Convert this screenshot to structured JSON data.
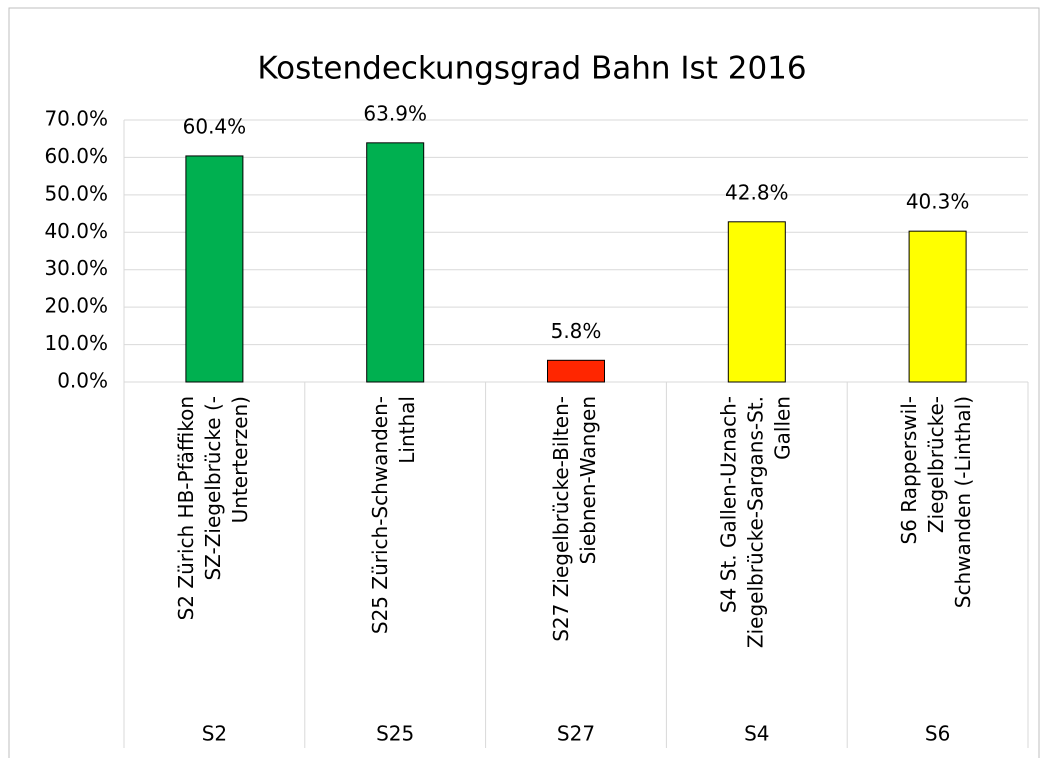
{
  "chart_data": {
    "type": "bar",
    "title": "Kostendeckungsgrad Bahn Ist 2016",
    "categories": [
      [
        "S2 Zürich HB-Pfäffikon",
        "SZ-Ziegelbrücke (-",
        "Unterterzen)"
      ],
      [
        "S25 Zürich-Schwanden-",
        "Linthal"
      ],
      [
        "S27 Ziegelbrücke-Bilten-",
        "Siebnen-Wangen"
      ],
      [
        "S4 St. Gallen-Uznach-",
        "Ziegelbrücke-Sargans-St.",
        "Gallen"
      ],
      [
        "S6 Rapperswil-",
        "Ziegelbrücke-",
        "Schwanden (-Linthal)"
      ]
    ],
    "groups": [
      "S2",
      "S25",
      "S27",
      "S4",
      "S6"
    ],
    "values": [
      60.4,
      63.9,
      5.8,
      42.8,
      40.3
    ],
    "value_labels": [
      "60.4%",
      "63.9%",
      "5.8%",
      "42.8%",
      "40.3%"
    ],
    "colors": [
      "#00b050",
      "#00b050",
      "#ff2600",
      "#ffff00",
      "#ffff00"
    ],
    "ylim": [
      0,
      70
    ],
    "yticks": [
      {
        "value": 0,
        "label": "0.0%"
      },
      {
        "value": 10,
        "label": "10.0%"
      },
      {
        "value": 20,
        "label": "20.0%"
      },
      {
        "value": 30,
        "label": "30.0%"
      },
      {
        "value": 40,
        "label": "40.0%"
      },
      {
        "value": 50,
        "label": "50.0%"
      },
      {
        "value": 60,
        "label": "60.0%"
      },
      {
        "value": 70,
        "label": "70.0%"
      }
    ],
    "grid": true
  }
}
